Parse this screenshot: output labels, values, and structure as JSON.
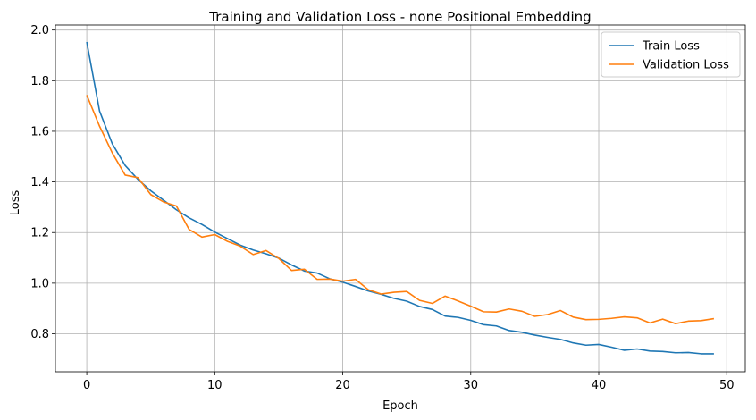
{
  "chart_data": {
    "type": "line",
    "title": "Training and Validation Loss  - none Positional Embedding",
    "xlabel": "Epoch",
    "ylabel": "Loss",
    "xlim": [
      -2.45,
      51.45
    ],
    "ylim": [
      0.65,
      2.02
    ],
    "xticks": [
      0,
      10,
      20,
      30,
      40,
      50
    ],
    "xtick_labels": [
      "0",
      "10",
      "20",
      "30",
      "40",
      "50"
    ],
    "yticks": [
      0.8,
      1.0,
      1.2,
      1.4,
      1.6,
      1.8,
      2.0
    ],
    "ytick_labels": [
      "0.8",
      "1.0",
      "1.2",
      "1.4",
      "1.6",
      "1.8",
      "2.0"
    ],
    "grid": true,
    "legend_position": "top-right",
    "x": [
      0,
      1,
      2,
      3,
      4,
      5,
      6,
      7,
      8,
      9,
      10,
      11,
      12,
      13,
      14,
      15,
      16,
      17,
      18,
      19,
      20,
      21,
      22,
      23,
      24,
      25,
      26,
      27,
      28,
      29,
      30,
      31,
      32,
      33,
      34,
      35,
      36,
      37,
      38,
      39,
      40,
      41,
      42,
      43,
      44,
      45,
      46,
      47,
      48,
      49
    ],
    "series": [
      {
        "name": "Train Loss",
        "color": "#1f77b4",
        "values": [
          1.953,
          1.68,
          1.55,
          1.465,
          1.41,
          1.365,
          1.328,
          1.29,
          1.258,
          1.232,
          1.202,
          1.176,
          1.15,
          1.131,
          1.116,
          1.099,
          1.072,
          1.048,
          1.04,
          1.017,
          1.004,
          0.987,
          0.969,
          0.956,
          0.94,
          0.929,
          0.908,
          0.896,
          0.87,
          0.865,
          0.853,
          0.836,
          0.831,
          0.813,
          0.806,
          0.795,
          0.786,
          0.778,
          0.764,
          0.755,
          0.758,
          0.747,
          0.735,
          0.74,
          0.732,
          0.73,
          0.725,
          0.726,
          0.721,
          0.721
        ]
      },
      {
        "name": "Validation Loss",
        "color": "#ff7f0e",
        "values": [
          1.743,
          1.62,
          1.514,
          1.427,
          1.417,
          1.35,
          1.321,
          1.305,
          1.212,
          1.182,
          1.192,
          1.165,
          1.146,
          1.113,
          1.129,
          1.098,
          1.05,
          1.055,
          1.015,
          1.016,
          1.008,
          1.015,
          0.974,
          0.957,
          0.964,
          0.967,
          0.932,
          0.92,
          0.949,
          0.93,
          0.909,
          0.887,
          0.886,
          0.898,
          0.889,
          0.869,
          0.876,
          0.892,
          0.866,
          0.856,
          0.857,
          0.861,
          0.867,
          0.863,
          0.843,
          0.858,
          0.84,
          0.85,
          0.852,
          0.86
        ]
      }
    ]
  }
}
